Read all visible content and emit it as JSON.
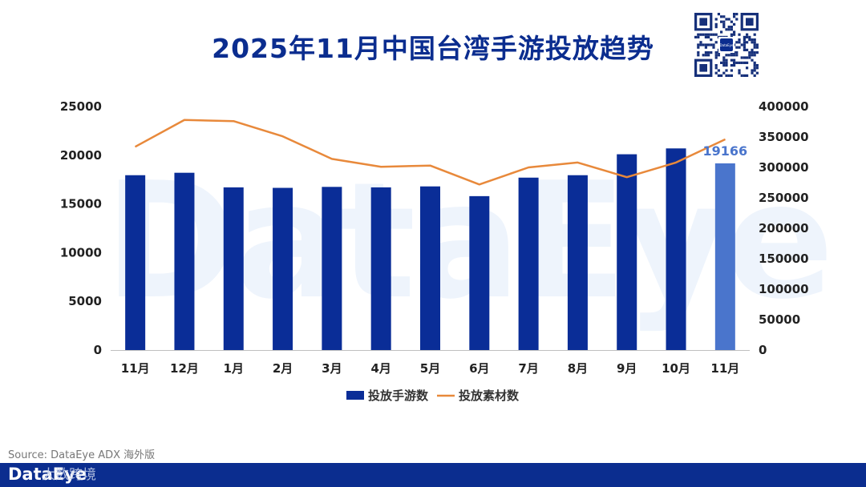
{
  "header": {
    "title": "2025年11月中国台湾手游投放趋势"
  },
  "qr": {
    "center_label": "DataEye"
  },
  "watermark": {
    "text": "DataEye"
  },
  "colors": {
    "bar": "#0a2d97",
    "bar_highlight": "#4a75cc",
    "line": "#e8893b",
    "title": "#0b2d8f",
    "axis_text": "#222222"
  },
  "chart_data": {
    "type": "bar",
    "categories": [
      "11月",
      "12月",
      "1月",
      "2月",
      "3月",
      "4月",
      "5月",
      "6月",
      "7月",
      "8月",
      "9月",
      "10月",
      "11月"
    ],
    "series": [
      {
        "name": "投放手游数",
        "type": "bar",
        "axis": "left",
        "values": [
          17950,
          18200,
          16700,
          16650,
          16750,
          16700,
          16800,
          15800,
          17700,
          17950,
          20100,
          20700,
          19166
        ]
      },
      {
        "name": "投放素材数",
        "type": "line",
        "axis": "right",
        "values": [
          334000,
          378000,
          376000,
          351000,
          314000,
          301000,
          303000,
          272000,
          300000,
          308000,
          284000,
          308000,
          346000
        ]
      }
    ],
    "y_left": {
      "min": 0,
      "max": 25000,
      "ticks": [
        "0",
        "5000",
        "10000",
        "15000",
        "20000",
        "25000"
      ]
    },
    "y_right": {
      "min": 0,
      "max": 400000,
      "ticks": [
        "0",
        "50000",
        "100000",
        "150000",
        "200000",
        "250000",
        "300000",
        "350000",
        "400000"
      ]
    },
    "highlight_index": 12,
    "data_label": {
      "index": 12,
      "text": "19166"
    },
    "grid": false,
    "legend": {
      "position": "bottom"
    }
  },
  "footer": {
    "source": "Source: DataEye ADX 海外版",
    "brand": "DataEye",
    "cn_brand": "大数跨境"
  }
}
